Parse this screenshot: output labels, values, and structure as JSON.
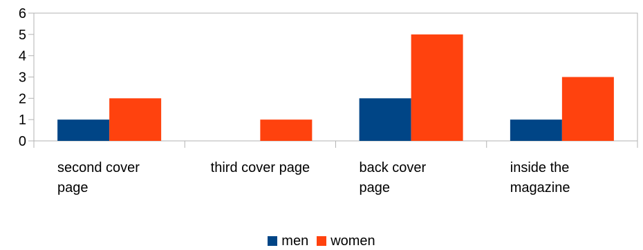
{
  "chart_data": {
    "type": "bar",
    "categories": [
      [
        "second cover",
        "page"
      ],
      [
        "third cover page"
      ],
      [
        "back cover",
        "page"
      ],
      [
        "inside the",
        "magazine"
      ]
    ],
    "series": [
      {
        "name": "men",
        "values": [
          1,
          0,
          2,
          1
        ],
        "color": "#004586"
      },
      {
        "name": "women",
        "values": [
          2,
          1,
          5,
          3
        ],
        "color": "#FF420E"
      }
    ],
    "ylim": [
      0,
      6
    ],
    "yticks": [
      0,
      1,
      2,
      3,
      4,
      5,
      6
    ],
    "grid": false,
    "legend_position": "bottom"
  }
}
